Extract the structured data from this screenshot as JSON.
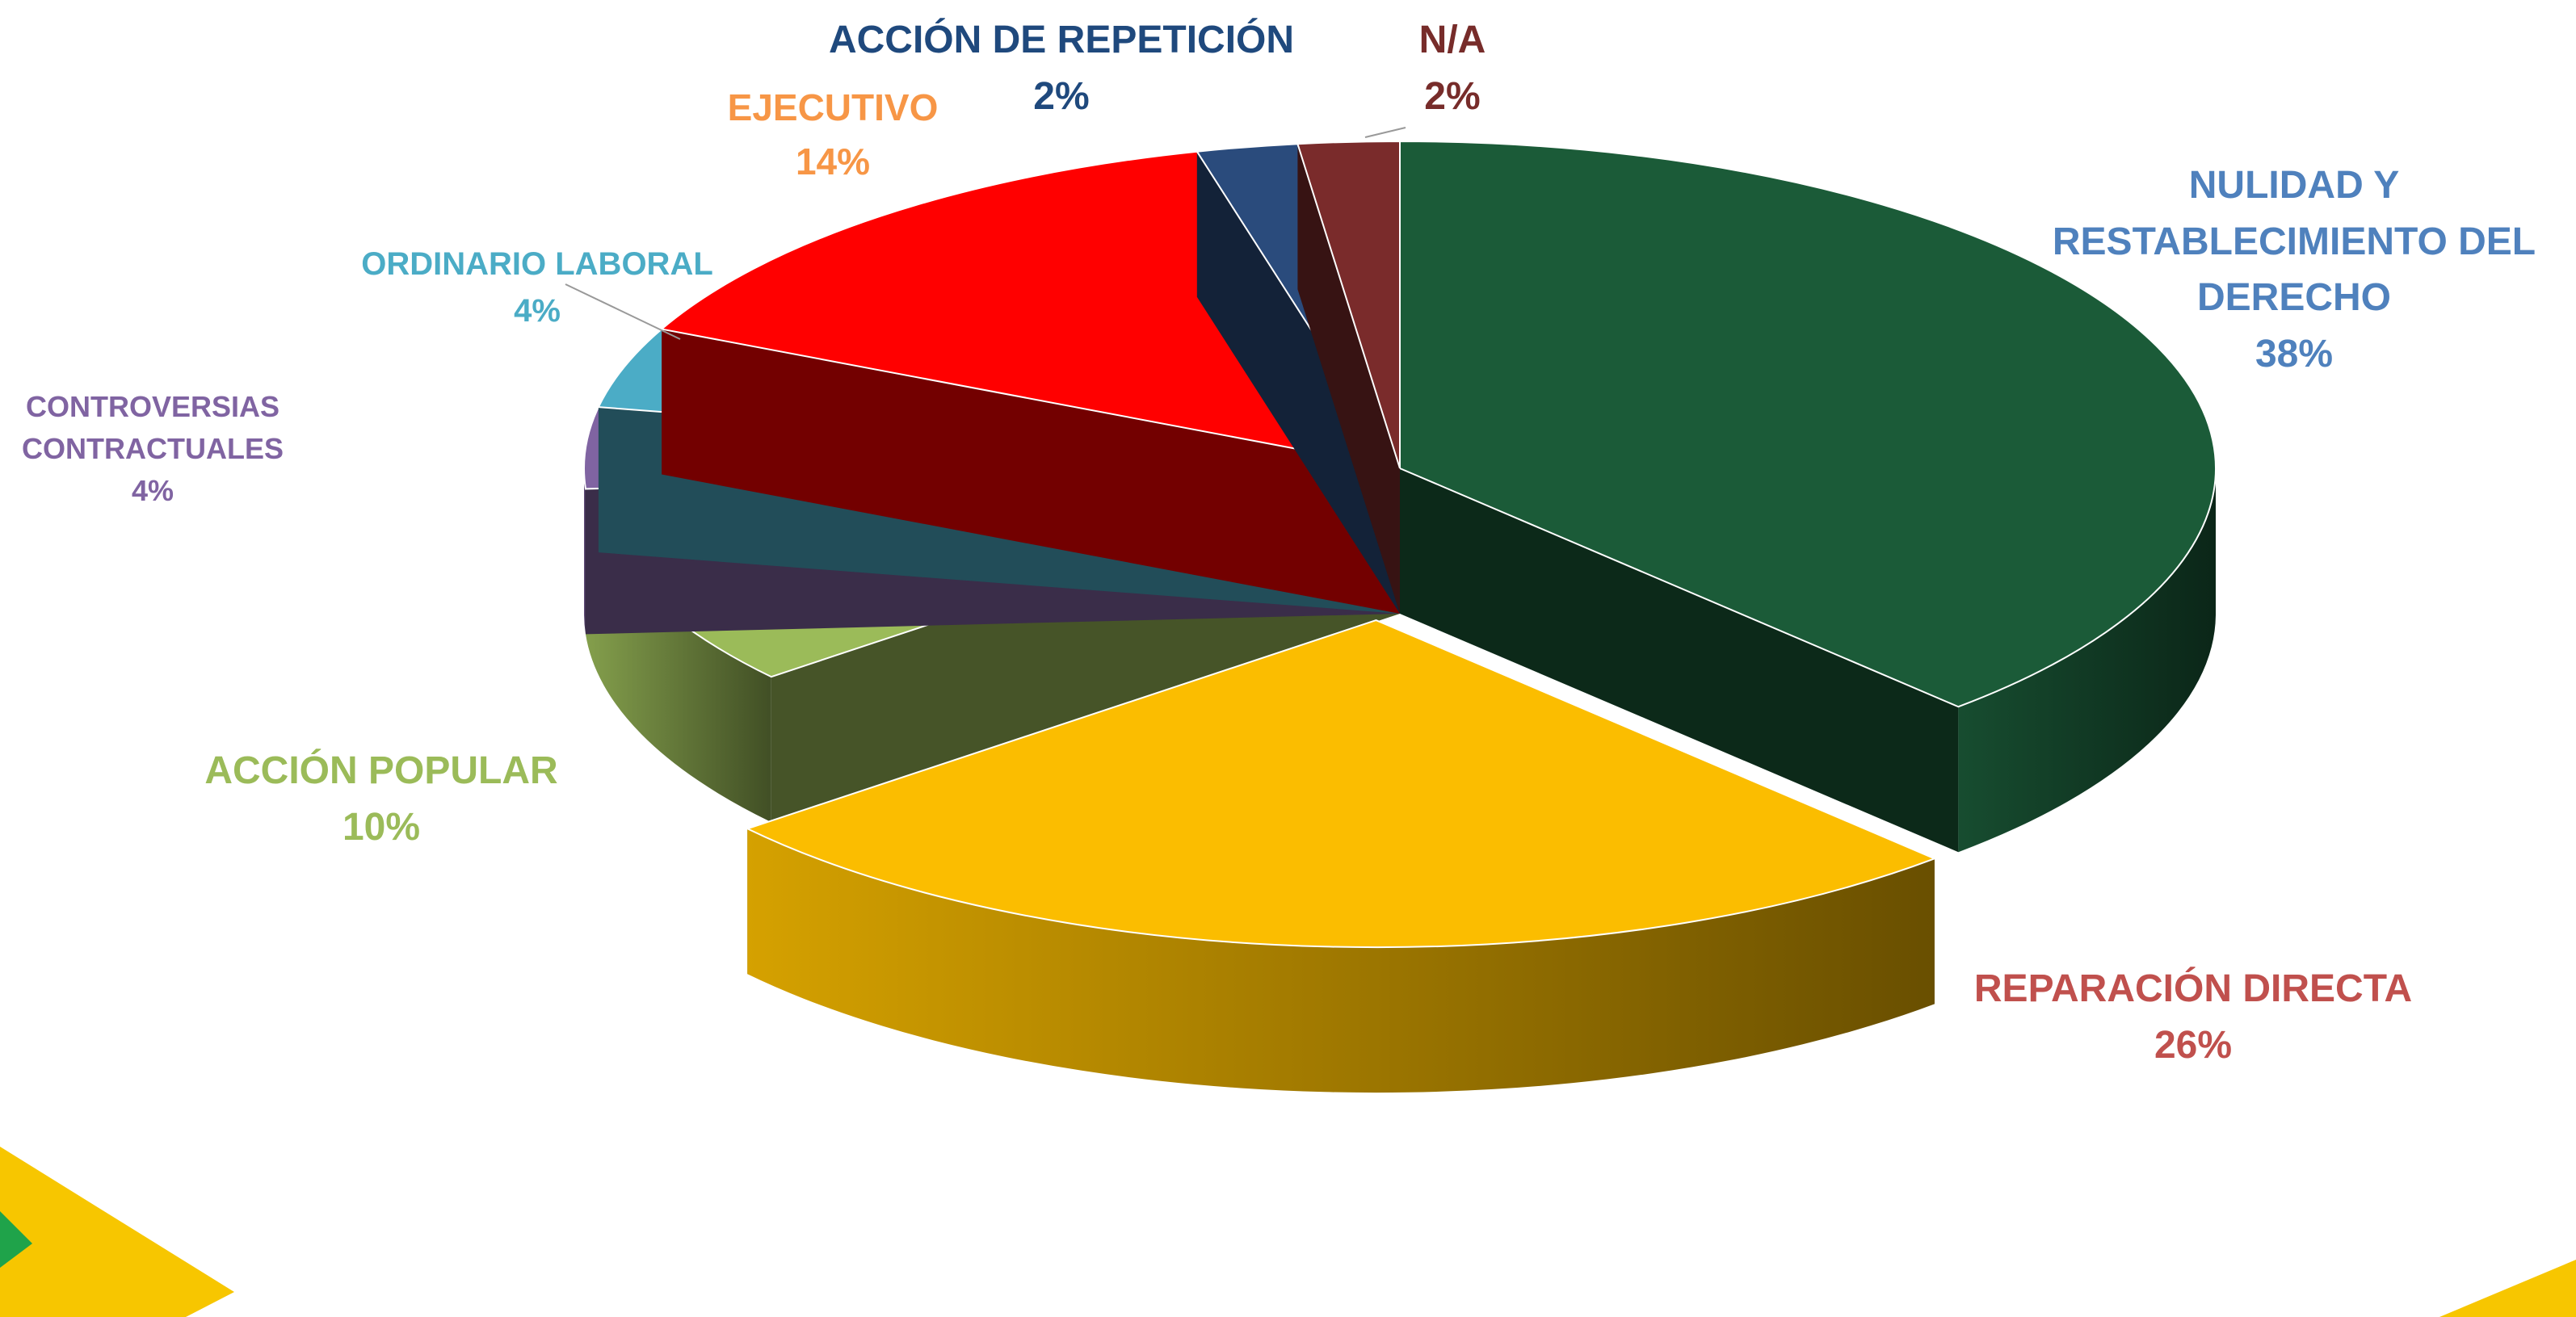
{
  "chart_data": {
    "type": "pie",
    "categories": [
      "NULIDAD Y RESTABLECIMIENTO DEL DERECHO",
      "REPARACIÓN DIRECTA",
      "ACCIÓN POPULAR",
      "CONTROVERSIAS CONTRACTUALES",
      "ORDINARIO LABORAL",
      "EJECUTIVO",
      "ACCIÓN DE REPETICIÓN",
      "N/A"
    ],
    "values": [
      38,
      26,
      10,
      4,
      4,
      14,
      2,
      2
    ],
    "value_labels": [
      "38%",
      "26%",
      "10%",
      "4%",
      "4%",
      "14%",
      "2%",
      "2%"
    ],
    "colors": [
      "#1b5b38",
      "#fbbd00",
      "#9bbb59",
      "#8064a2",
      "#4bacc6",
      "#ff0000",
      "#2a4b7c",
      "#7a2b2b"
    ],
    "label_colors": [
      "#4f81bd",
      "#c0504d",
      "#9bbb59",
      "#8064a2",
      "#4bacc6",
      "#f79646",
      "#1f497d",
      "#772c2a"
    ]
  }
}
